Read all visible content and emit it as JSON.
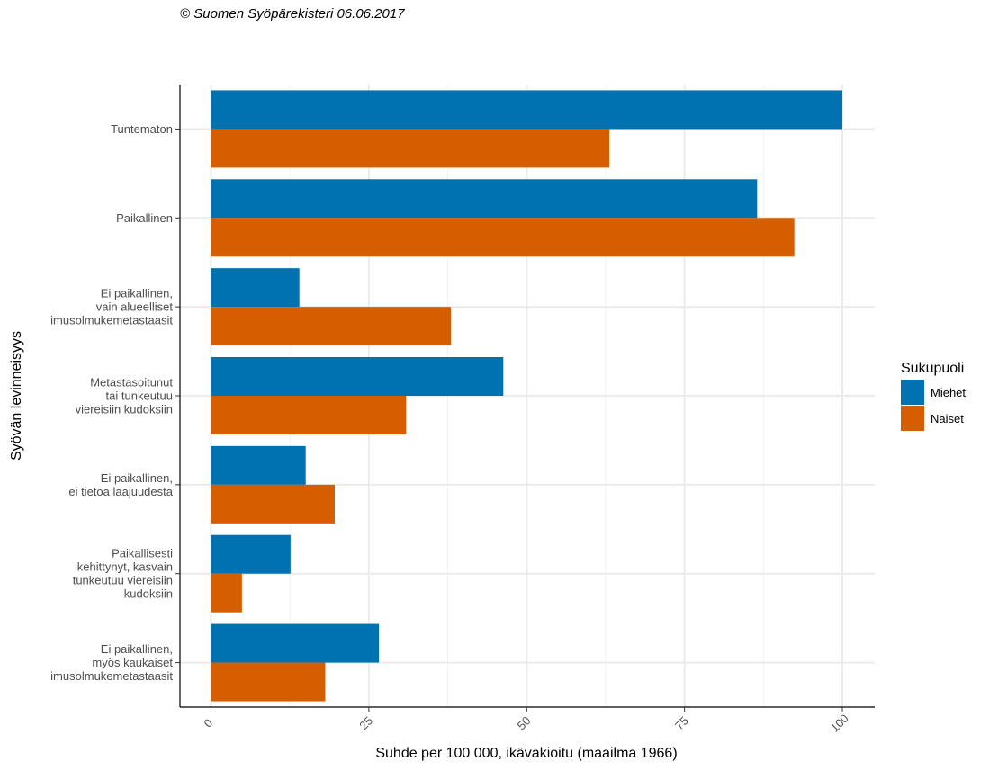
{
  "caption": "© Suomen Syöpärekisteri 06.06.2017",
  "chart_data": {
    "type": "bar",
    "orientation": "horizontal",
    "xlabel": "Suhde per 100 000, ikävakioitu (maailma 1966)",
    "ylabel": "Syövän levinneisyys",
    "xlim": [
      0,
      100
    ],
    "xticks": [
      "0",
      "25",
      "50",
      "75",
      "100"
    ],
    "grid": true,
    "legend_position": "right",
    "legend_title": "Sukupuoli",
    "categories": [
      [
        "Tuntematon"
      ],
      [
        "Paikallinen"
      ],
      [
        "Ei paikallinen,",
        "vain alueelliset",
        "imusolmukemetastaasit"
      ],
      [
        "Metastasoitunut",
        "tai tunkeutuu",
        "viereisiin kudoksiin"
      ],
      [
        "Ei paikallinen,",
        "ei tietoa laajuudesta"
      ],
      [
        "Paikallisesti",
        "kehittynyt, kasvain",
        "tunkeutuu viereisiin",
        "kudoksiin"
      ],
      [
        "Ei paikallinen,",
        "myös kaukaiset",
        "imusolmukemetastaasit"
      ]
    ],
    "series": [
      {
        "name": "Miehet",
        "color": "#0072B2",
        "values": [
          100,
          86.5,
          14,
          46.3,
          15,
          12.6,
          26.6
        ]
      },
      {
        "name": "Naiset",
        "color": "#D55E00",
        "values": [
          63.1,
          92.4,
          38,
          30.9,
          19.6,
          4.9,
          18.1
        ]
      }
    ]
  }
}
